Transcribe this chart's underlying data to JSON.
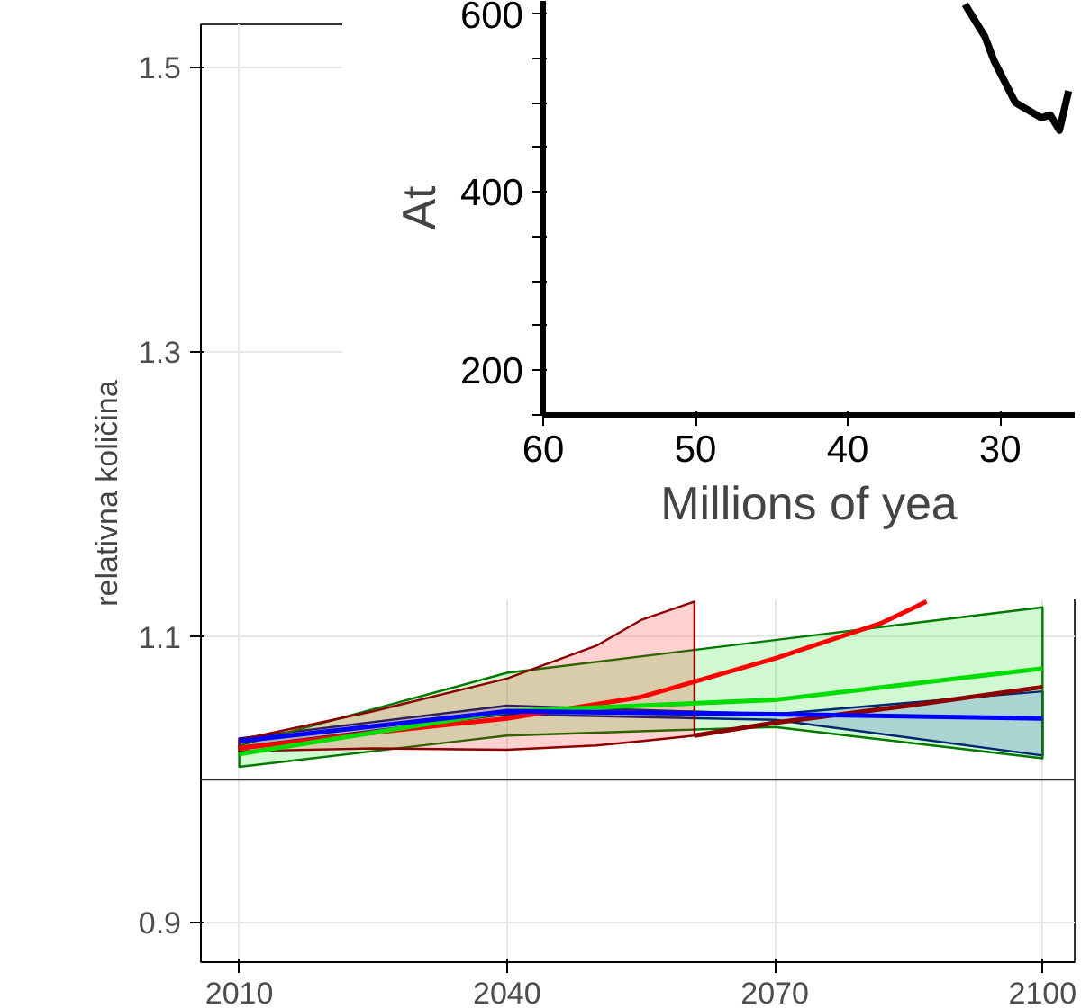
{
  "chart_data": [
    {
      "type": "line",
      "ylabel": "relativna količina",
      "xlim": [
        2005.7,
        2103.6
      ],
      "xticks": [
        2010,
        2040,
        2070,
        2100
      ],
      "ylim": [
        0.872,
        1.53
      ],
      "yticks": [
        0.9,
        1.1,
        1.3,
        1.5
      ],
      "grid": true,
      "ref_lines": [
        {
          "axis": "y",
          "value": 1.0,
          "color": "#333333"
        }
      ],
      "series": [
        {
          "color": "#0000ff",
          "x": [
            2010,
            2040,
            2070,
            2100
          ],
          "values": [
            1.027,
            1.048,
            1.046,
            1.043
          ],
          "lower": [
            1.023,
            1.046,
            1.042,
            1.017
          ],
          "upper": [
            1.029,
            1.052,
            1.046,
            1.062
          ]
        },
        {
          "color": "#00dd00",
          "x": [
            2010,
            2040,
            2070,
            2100
          ],
          "values": [
            1.018,
            1.048,
            1.056,
            1.078
          ],
          "lower": [
            1.009,
            1.031,
            1.037,
            1.015
          ],
          "upper": [
            1.024,
            1.075,
            1.098,
            1.121
          ]
        },
        {
          "color": "#ff0000",
          "x": [
            2010,
            2025,
            2040,
            2055,
            2070,
            2082,
            2087
          ],
          "values": [
            1.022,
            1.033,
            1.043,
            1.058,
            1.085,
            1.11,
            1.125
          ]
        },
        {
          "color": "#ff0000",
          "x": [
            2010,
            2025,
            2040,
            2050,
            2055,
            2061
          ],
          "values": [
            null,
            null,
            null,
            null,
            null,
            null
          ],
          "lower": [
            1.02,
            1.022,
            1.021,
            1.024,
            1.027,
            1.031
          ],
          "upper": [
            1.028,
            1.048,
            1.071,
            1.094,
            1.112,
            1.125
          ]
        },
        {
          "color": "#8b0000",
          "x": [
            2061,
            2070,
            2085,
            2100
          ],
          "values": [
            1.031,
            1.04,
            1.052,
            1.065
          ]
        }
      ]
    },
    {
      "type": "line",
      "ylabel": "At",
      "xlabel": "Millions of yea",
      "xlim": [
        60,
        25.1
      ],
      "xticks": [
        60,
        50,
        40,
        30
      ],
      "ylim": [
        150,
        614
      ],
      "yticks": [
        {
          "value": 150,
          "label": null
        },
        200,
        {
          "value": 250,
          "label": null
        },
        {
          "value": 300,
          "label": null
        },
        {
          "value": 350,
          "label": null
        },
        400,
        {
          "value": 450,
          "label": null
        },
        {
          "value": 500,
          "label": null
        },
        {
          "value": 550,
          "label": null
        },
        600
      ],
      "series": [
        {
          "color": "#000000",
          "x": [
            32.3,
            31.0,
            30.4,
            29.0,
            27.3,
            26.7,
            26.1,
            25.5
          ],
          "values": [
            610,
            574,
            547,
            500,
            483,
            486,
            469,
            513
          ]
        }
      ]
    }
  ]
}
